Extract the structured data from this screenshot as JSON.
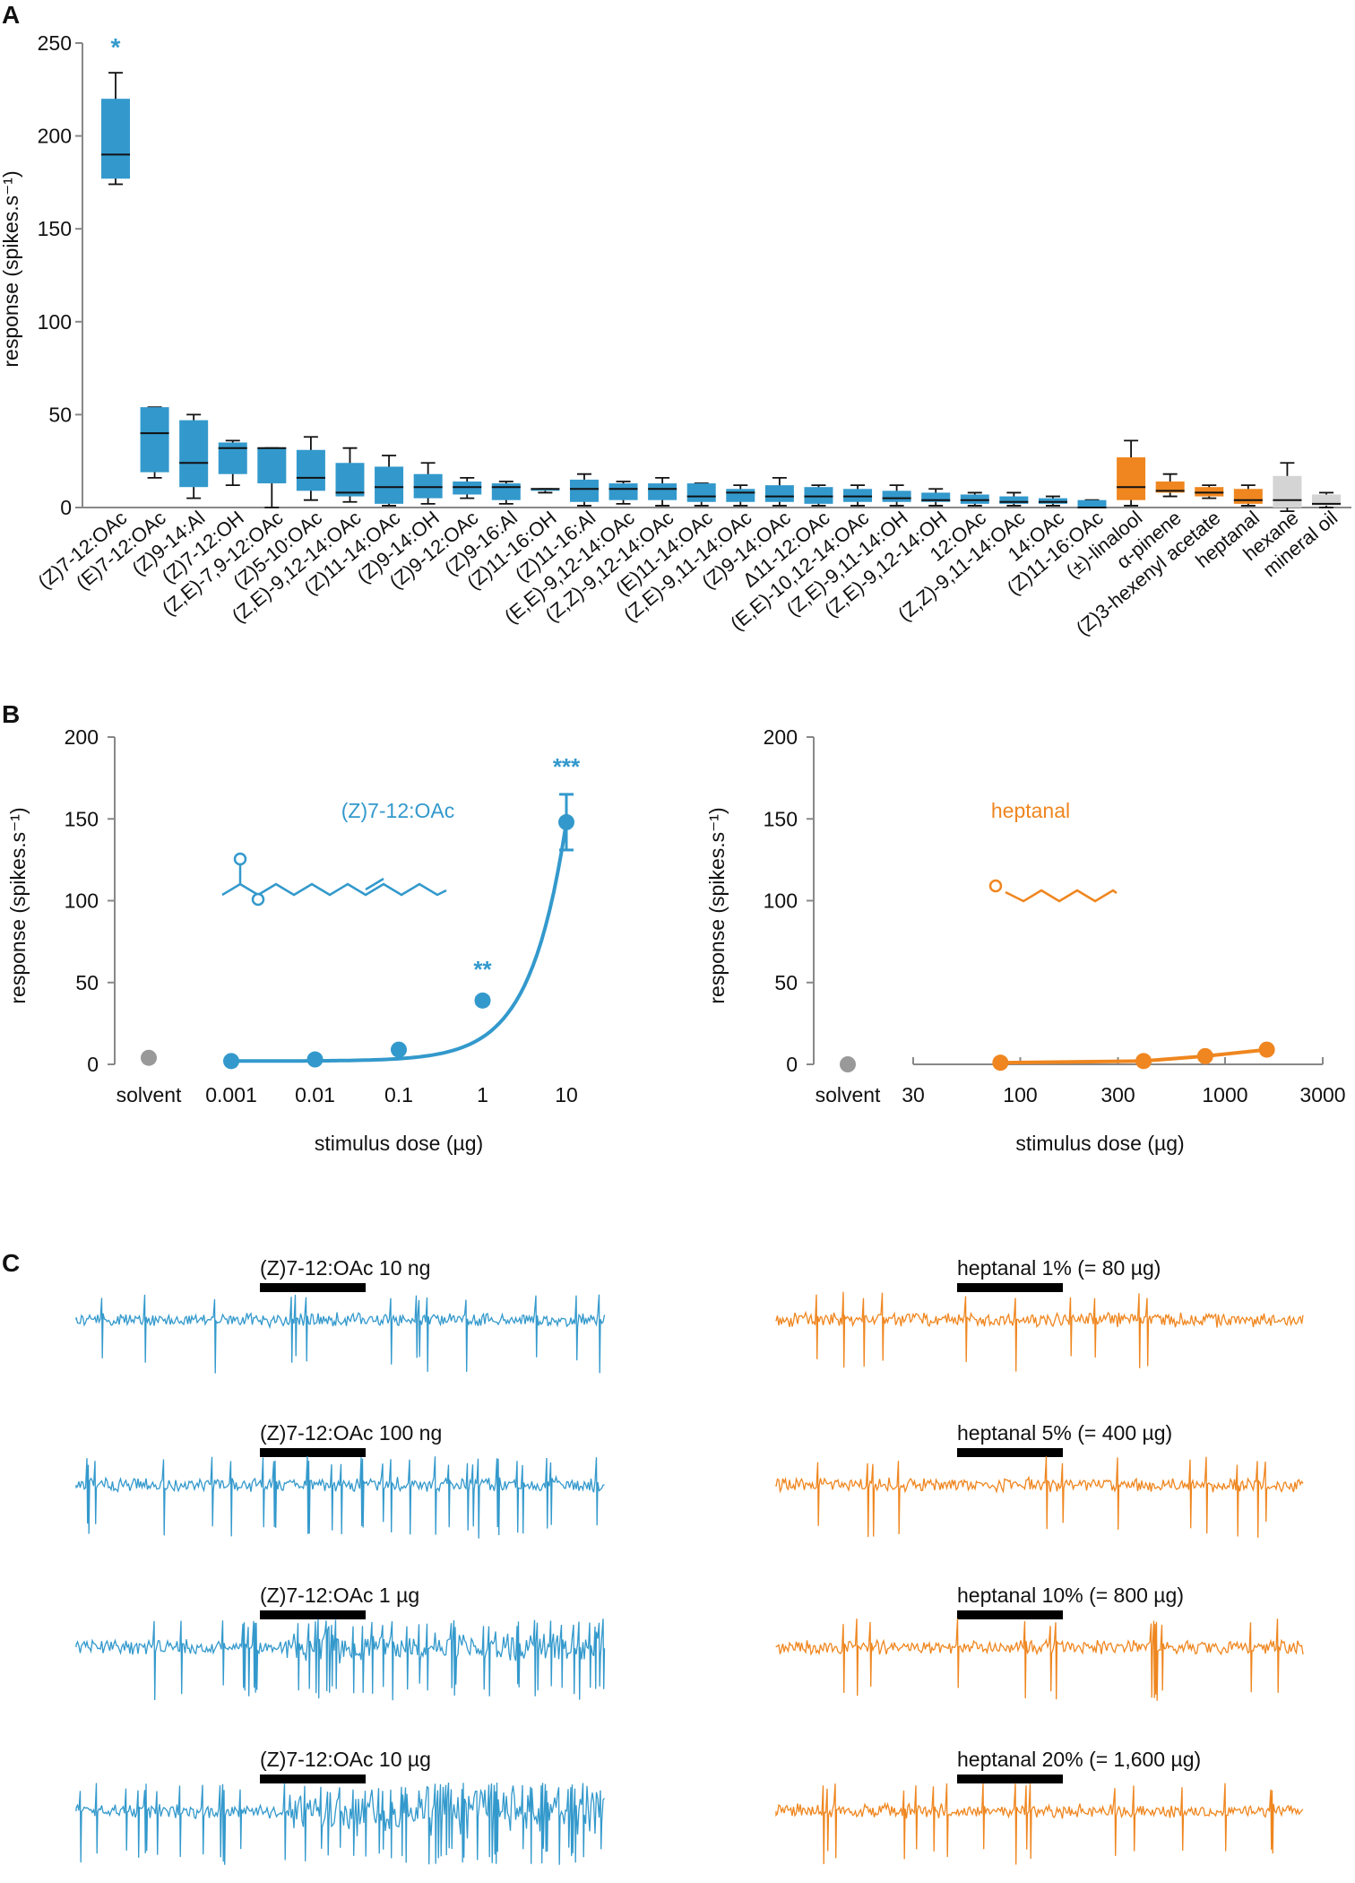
{
  "colors": {
    "blue": "#3399cc",
    "orange": "#ef861f",
    "gray": "#d4d4d4",
    "axis": "#888888",
    "text": "#111111"
  },
  "panels": {
    "a": "A",
    "b": "B",
    "c": "C"
  },
  "chart_data": [
    {
      "id": "A",
      "type": "box",
      "ylabel": "response (spikes.s⁻¹)",
      "ylim": [
        0,
        250
      ],
      "yticks": [
        0,
        50,
        100,
        150,
        200,
        250
      ],
      "significance": [
        {
          "category": "(Z)7-12:OAc",
          "label": "*"
        }
      ],
      "categories": [
        "(Z)7-12:OAc",
        "(E)7-12:OAc",
        "(Z)9-14:Al",
        "(Z)7-12:OH",
        "(Z,E)-7,9-12:OAc",
        "(Z)5-10:OAc",
        "(Z,E)-9,12-14:OAc",
        "(Z)11-14:OAc",
        "(Z)9-14:OH",
        "(Z)9-12:OAc",
        "(Z)9-16:Al",
        "(Z)11-16:OH",
        "(Z)11-16:Al",
        "(E,E)-9,12-14:OAc",
        "(Z,Z)-9,12-14:OAc",
        "(E)11-14:OAc",
        "(Z,E)-9,11-14:OAc",
        "(Z)9-14:OAc",
        "Δ11-12:OAc",
        "(E,E)-10,12-14:OAc",
        "(Z,E)-9,11-14:OH",
        "(Z,E)-9,12-14:OH",
        "12:OAc",
        "(Z,Z)-9,11-14:OAc",
        "14:OAc",
        "(Z)11-16:OAc",
        "(±)-linalool",
        "α-pinene",
        "(Z)3-hexenyl acetate",
        "heptanal",
        "hexane",
        "mineral oil"
      ],
      "groups": [
        "blue",
        "blue",
        "blue",
        "blue",
        "blue",
        "blue",
        "blue",
        "blue",
        "blue",
        "blue",
        "blue",
        "blue",
        "blue",
        "blue",
        "blue",
        "blue",
        "blue",
        "blue",
        "blue",
        "blue",
        "blue",
        "blue",
        "blue",
        "blue",
        "blue",
        "blue",
        "orange",
        "orange",
        "orange",
        "orange",
        "gray",
        "gray"
      ],
      "boxes": [
        {
          "min": 174,
          "q1": 177,
          "median": 190,
          "q3": 220,
          "max": 234
        },
        {
          "min": 16,
          "q1": 19,
          "median": 40,
          "q3": 54,
          "max": 54
        },
        {
          "min": 5,
          "q1": 11,
          "median": 24,
          "q3": 47,
          "max": 50
        },
        {
          "min": 12,
          "q1": 18,
          "median": 32,
          "q3": 35,
          "max": 36
        },
        {
          "min": 0,
          "q1": 13,
          "median": 32,
          "q3": 32,
          "max": 32
        },
        {
          "min": 4,
          "q1": 9,
          "median": 16,
          "q3": 31,
          "max": 38
        },
        {
          "min": 3,
          "q1": 6,
          "median": 8,
          "q3": 24,
          "max": 32
        },
        {
          "min": 1,
          "q1": 2,
          "median": 11,
          "q3": 22,
          "max": 28
        },
        {
          "min": 2,
          "q1": 5,
          "median": 11,
          "q3": 18,
          "max": 24
        },
        {
          "min": 5,
          "q1": 7,
          "median": 11,
          "q3": 14,
          "max": 16
        },
        {
          "min": 2,
          "q1": 4,
          "median": 11,
          "q3": 13,
          "max": 14
        },
        {
          "min": 8,
          "q1": 9,
          "median": 10,
          "q3": 10,
          "max": 10
        },
        {
          "min": 1,
          "q1": 3,
          "median": 10,
          "q3": 15,
          "max": 18
        },
        {
          "min": 2,
          "q1": 4,
          "median": 10,
          "q3": 13,
          "max": 14
        },
        {
          "min": 1,
          "q1": 4,
          "median": 10,
          "q3": 13,
          "max": 16
        },
        {
          "min": 1,
          "q1": 3,
          "median": 6,
          "q3": 13,
          "max": 13
        },
        {
          "min": 1,
          "q1": 3,
          "median": 8,
          "q3": 10,
          "max": 12
        },
        {
          "min": 1,
          "q1": 3,
          "median": 6,
          "q3": 12,
          "max": 16
        },
        {
          "min": 1,
          "q1": 2,
          "median": 6,
          "q3": 11,
          "max": 12
        },
        {
          "min": 1,
          "q1": 3,
          "median": 6,
          "q3": 10,
          "max": 12
        },
        {
          "min": 1,
          "q1": 3,
          "median": 5,
          "q3": 9,
          "max": 12
        },
        {
          "min": 1,
          "q1": 3,
          "median": 4,
          "q3": 8,
          "max": 10
        },
        {
          "min": 1,
          "q1": 2,
          "median": 4,
          "q3": 7,
          "max": 8
        },
        {
          "min": 1,
          "q1": 2,
          "median": 3,
          "q3": 6,
          "max": 8
        },
        {
          "min": 1,
          "q1": 2,
          "median": 3,
          "q3": 5,
          "max": 6
        },
        {
          "min": 0,
          "q1": 0,
          "median": 0,
          "q3": 4,
          "max": 4
        },
        {
          "min": 1,
          "q1": 4,
          "median": 11,
          "q3": 27,
          "max": 36
        },
        {
          "min": 6,
          "q1": 8,
          "median": 9,
          "q3": 14,
          "max": 18
        },
        {
          "min": 5,
          "q1": 6,
          "median": 8,
          "q3": 11,
          "max": 12
        },
        {
          "min": 1,
          "q1": 2,
          "median": 4,
          "q3": 10,
          "max": 12
        },
        {
          "min": -2,
          "q1": 0,
          "median": 4,
          "q3": 17,
          "max": 24
        },
        {
          "min": 0,
          "q1": 1,
          "median": 2,
          "q3": 7,
          "max": 8
        }
      ]
    },
    {
      "id": "B-left",
      "type": "line",
      "title": "(Z)7-12:OAc",
      "xlabel": "stimulus dose (µg)",
      "ylabel": "response (spikes.s⁻¹)",
      "ylim": [
        0,
        200
      ],
      "yticks": [
        0,
        50,
        100,
        150,
        200
      ],
      "xscale": "log",
      "xlim": [
        0.001,
        10
      ],
      "xticks": [
        0.001,
        0.01,
        0.1,
        1,
        10
      ],
      "xticklabels": [
        "0.001",
        "0.01",
        "0.1",
        "1",
        "10"
      ],
      "solvent_label": "solvent",
      "solvent_value": 4,
      "x": [
        0.001,
        0.01,
        0.1,
        1,
        10
      ],
      "y": [
        2,
        3,
        9,
        39,
        148
      ],
      "err": [
        1,
        1,
        1,
        2,
        17
      ],
      "stars": [
        "",
        "",
        "",
        "**",
        "***"
      ]
    },
    {
      "id": "B-right",
      "type": "line",
      "title": "heptanal",
      "xlabel": "stimulus dose (µg)",
      "ylabel": "response (spikes.s⁻¹)",
      "ylim": [
        0,
        200
      ],
      "yticks": [
        0,
        50,
        100,
        150,
        200
      ],
      "xscale": "log",
      "xlim": [
        30,
        3000
      ],
      "xticks": [
        30,
        100,
        300,
        1000,
        3000
      ],
      "xticklabels": [
        "30",
        "100",
        "300",
        "1000",
        "3000"
      ],
      "solvent_label": "solvent",
      "solvent_value": 0,
      "x": [
        80,
        400,
        800,
        1600
      ],
      "y": [
        1,
        2,
        5,
        9
      ],
      "err": [
        0,
        0,
        0,
        1
      ]
    }
  ],
  "traces": {
    "left": [
      {
        "label": "(Z)7-12:OAc 10 ng",
        "level": 1
      },
      {
        "label": "(Z)7-12:OAc 100 ng",
        "level": 2
      },
      {
        "label": "(Z)7-12:OAc 1 µg",
        "level": 3
      },
      {
        "label": "(Z)7-12:OAc 10 µg",
        "level": 4
      }
    ],
    "right": [
      {
        "label": "heptanal 1% (= 80 µg)",
        "level": 1
      },
      {
        "label": "heptanal 5% (= 400 µg)",
        "level": 1.4
      },
      {
        "label": "heptanal 10% (= 800 µg)",
        "level": 1.2
      },
      {
        "label": "heptanal 20% (= 1,600 µg)",
        "level": 1.3
      }
    ]
  }
}
